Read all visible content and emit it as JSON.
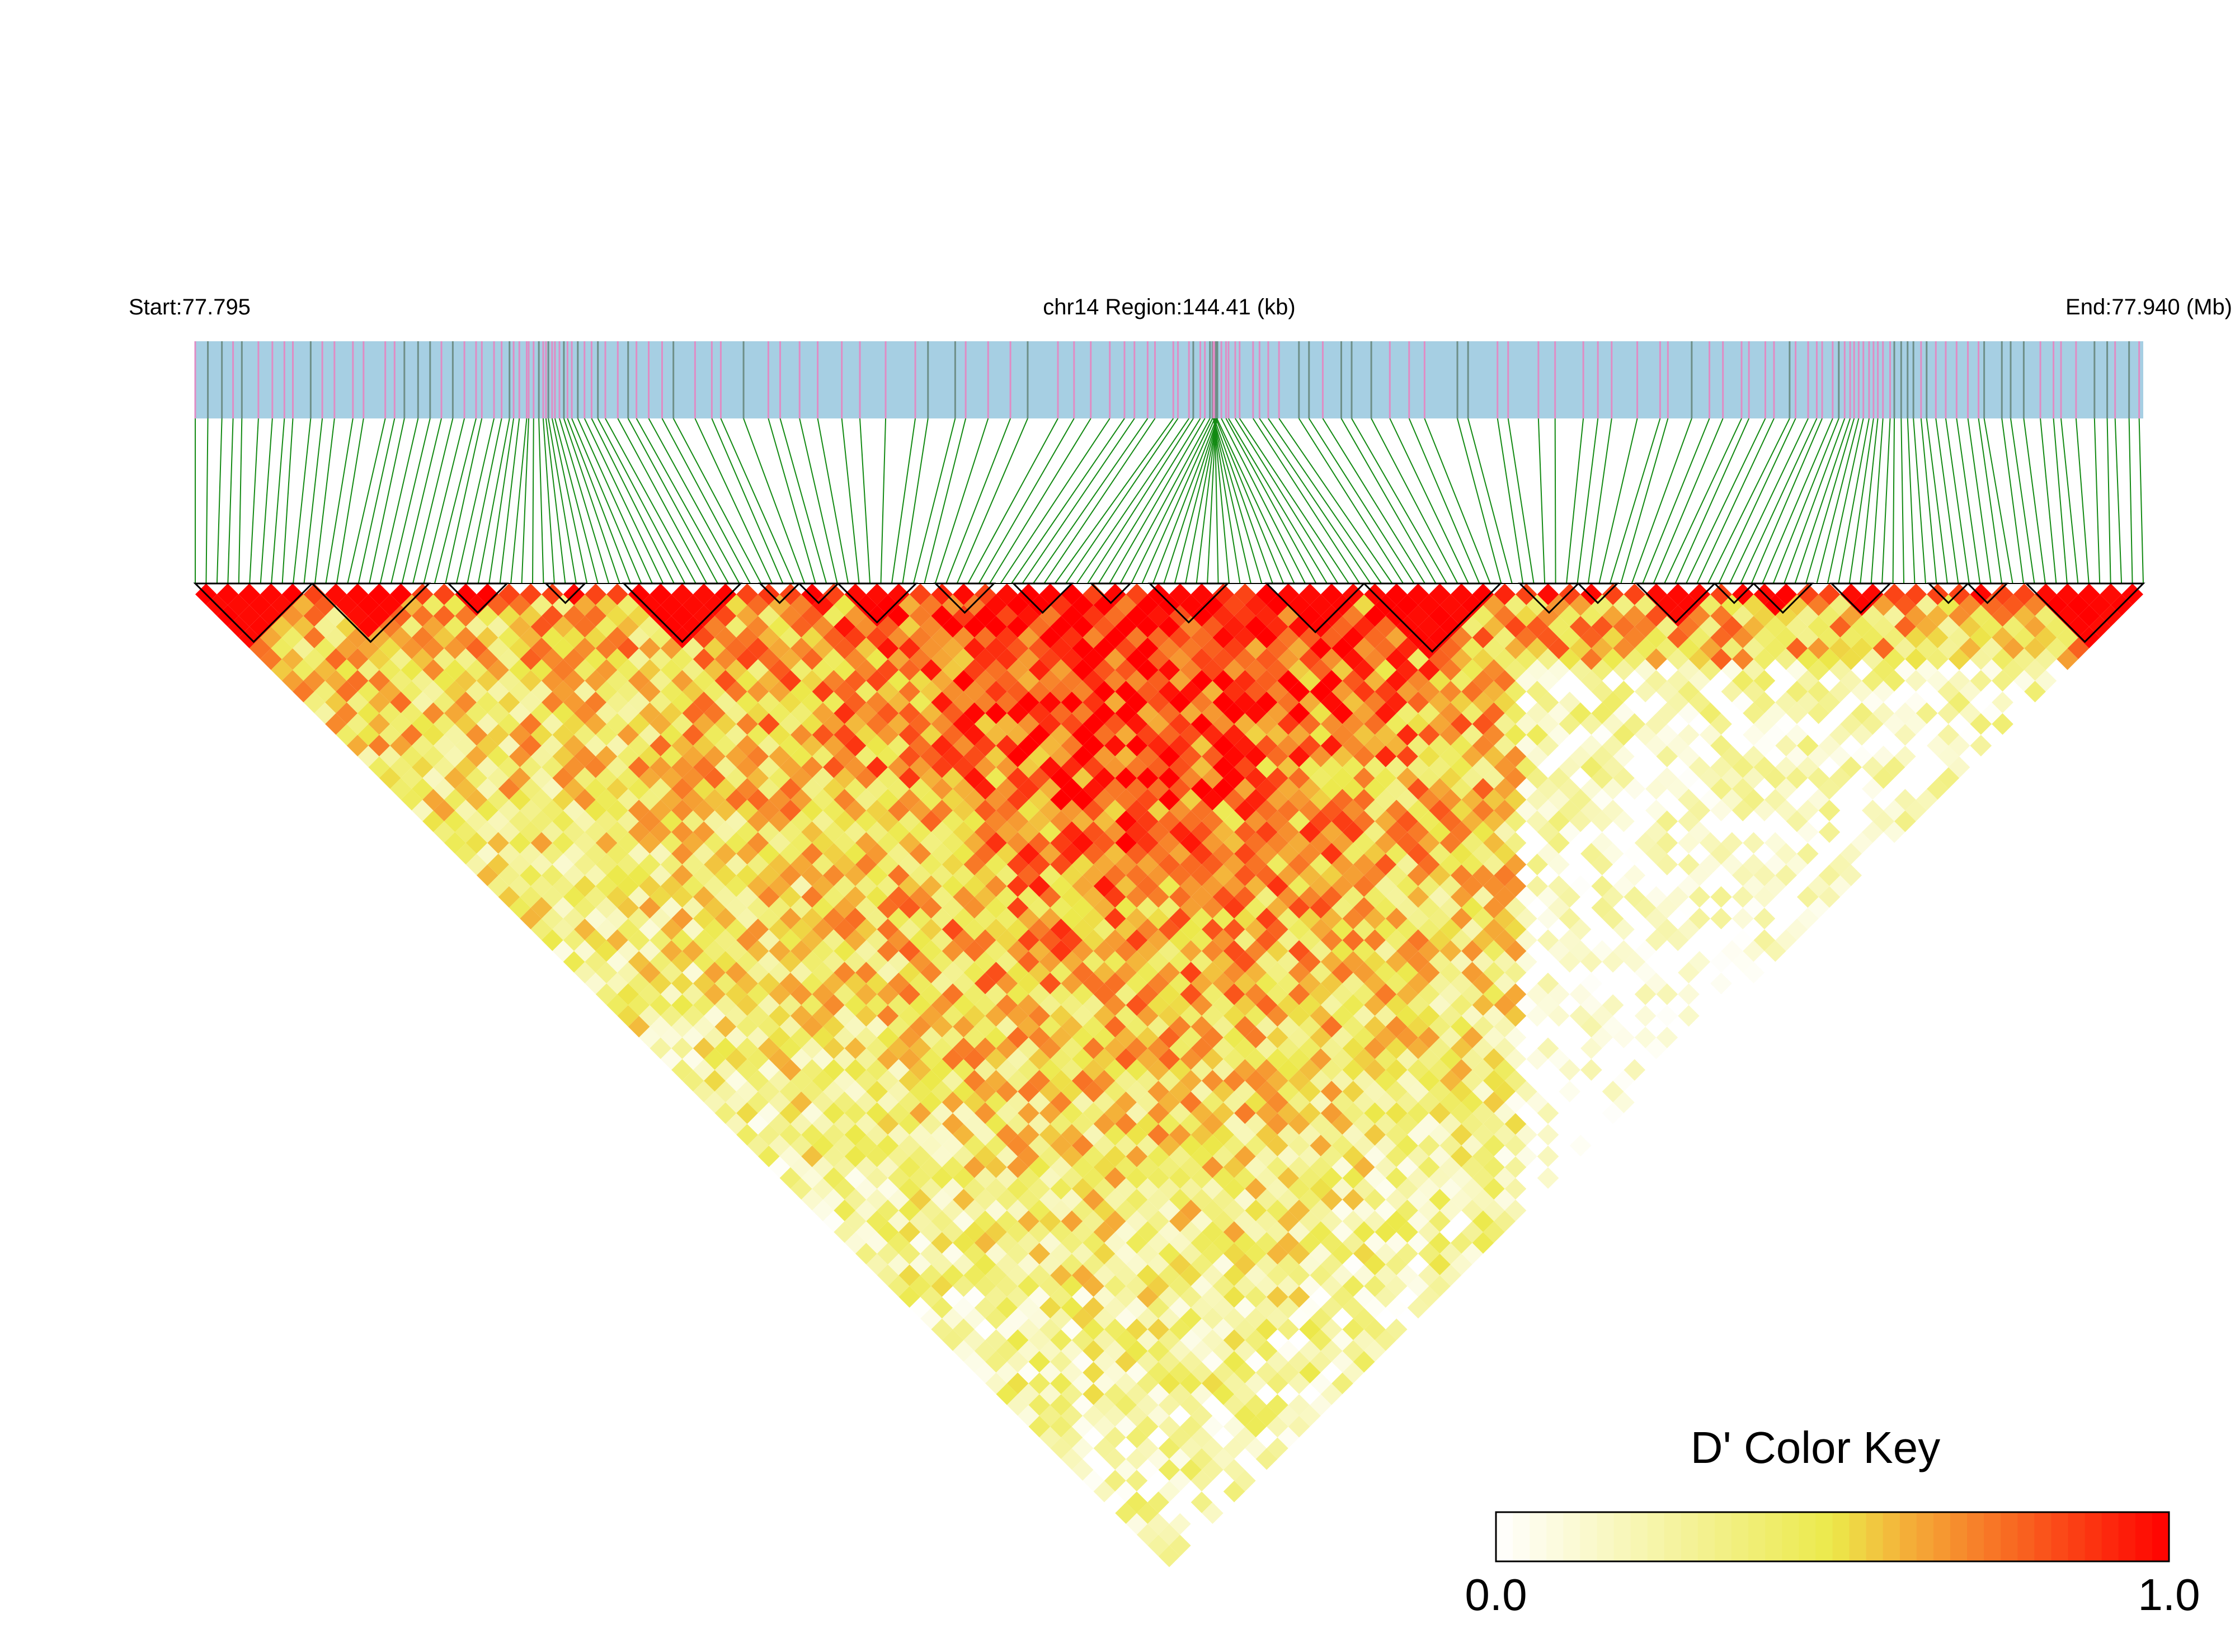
{
  "header": {
    "start_label": "Start:77.795",
    "region_label": "chr14 Region:144.41 (kb)",
    "end_label": "End:77.940 (Mb)"
  },
  "colors": {
    "track_base": "#a6cfe3",
    "track_marker": "#e08cc4",
    "track_marker_dark": "#6e8f88",
    "connector_line": "#138a13",
    "block_outline": "#000000",
    "heat_low": "#ffffff",
    "heat_mid": "#ece94a",
    "heat_high": "#ff0000"
  },
  "color_key": {
    "title": "D' Color Key",
    "min_label": "0.0",
    "max_label": "1.0",
    "min": 0.0,
    "max": 1.0
  },
  "chart_data": {
    "type": "heatmap",
    "description_label": "chr14 Region:144.41 (kb)",
    "chromosome": "chr14",
    "region_start_mb": 77.795,
    "region_end_mb": 77.94,
    "region_length_kb": 144.41,
    "value_name": "D'",
    "value_range": [
      0.0,
      1.0
    ],
    "layout": "inverted triangle LD heatmap (upper triangle rotated 45 degrees)",
    "high_ld_blocks_fraction_of_region": [
      [
        0.0,
        0.06
      ],
      [
        0.06,
        0.12
      ],
      [
        0.13,
        0.16
      ],
      [
        0.18,
        0.2
      ],
      [
        0.22,
        0.28
      ],
      [
        0.29,
        0.31
      ],
      [
        0.31,
        0.33
      ],
      [
        0.33,
        0.37
      ],
      [
        0.38,
        0.41
      ],
      [
        0.42,
        0.45
      ],
      [
        0.46,
        0.48
      ],
      [
        0.49,
        0.53
      ],
      [
        0.55,
        0.6
      ],
      [
        0.6,
        0.67
      ],
      [
        0.68,
        0.71
      ],
      [
        0.71,
        0.73
      ],
      [
        0.74,
        0.78
      ],
      [
        0.78,
        0.8
      ],
      [
        0.8,
        0.83
      ],
      [
        0.84,
        0.87
      ],
      [
        0.89,
        0.91
      ],
      [
        0.91,
        0.93
      ],
      [
        0.94,
        1.0
      ]
    ],
    "colorbar_stops": [
      {
        "value": 0.0,
        "color": "#ffffff"
      },
      {
        "value": 0.5,
        "color": "#ece94a"
      },
      {
        "value": 0.6,
        "color": "#f4b43a"
      },
      {
        "value": 1.0,
        "color": "#ff0000"
      }
    ]
  }
}
